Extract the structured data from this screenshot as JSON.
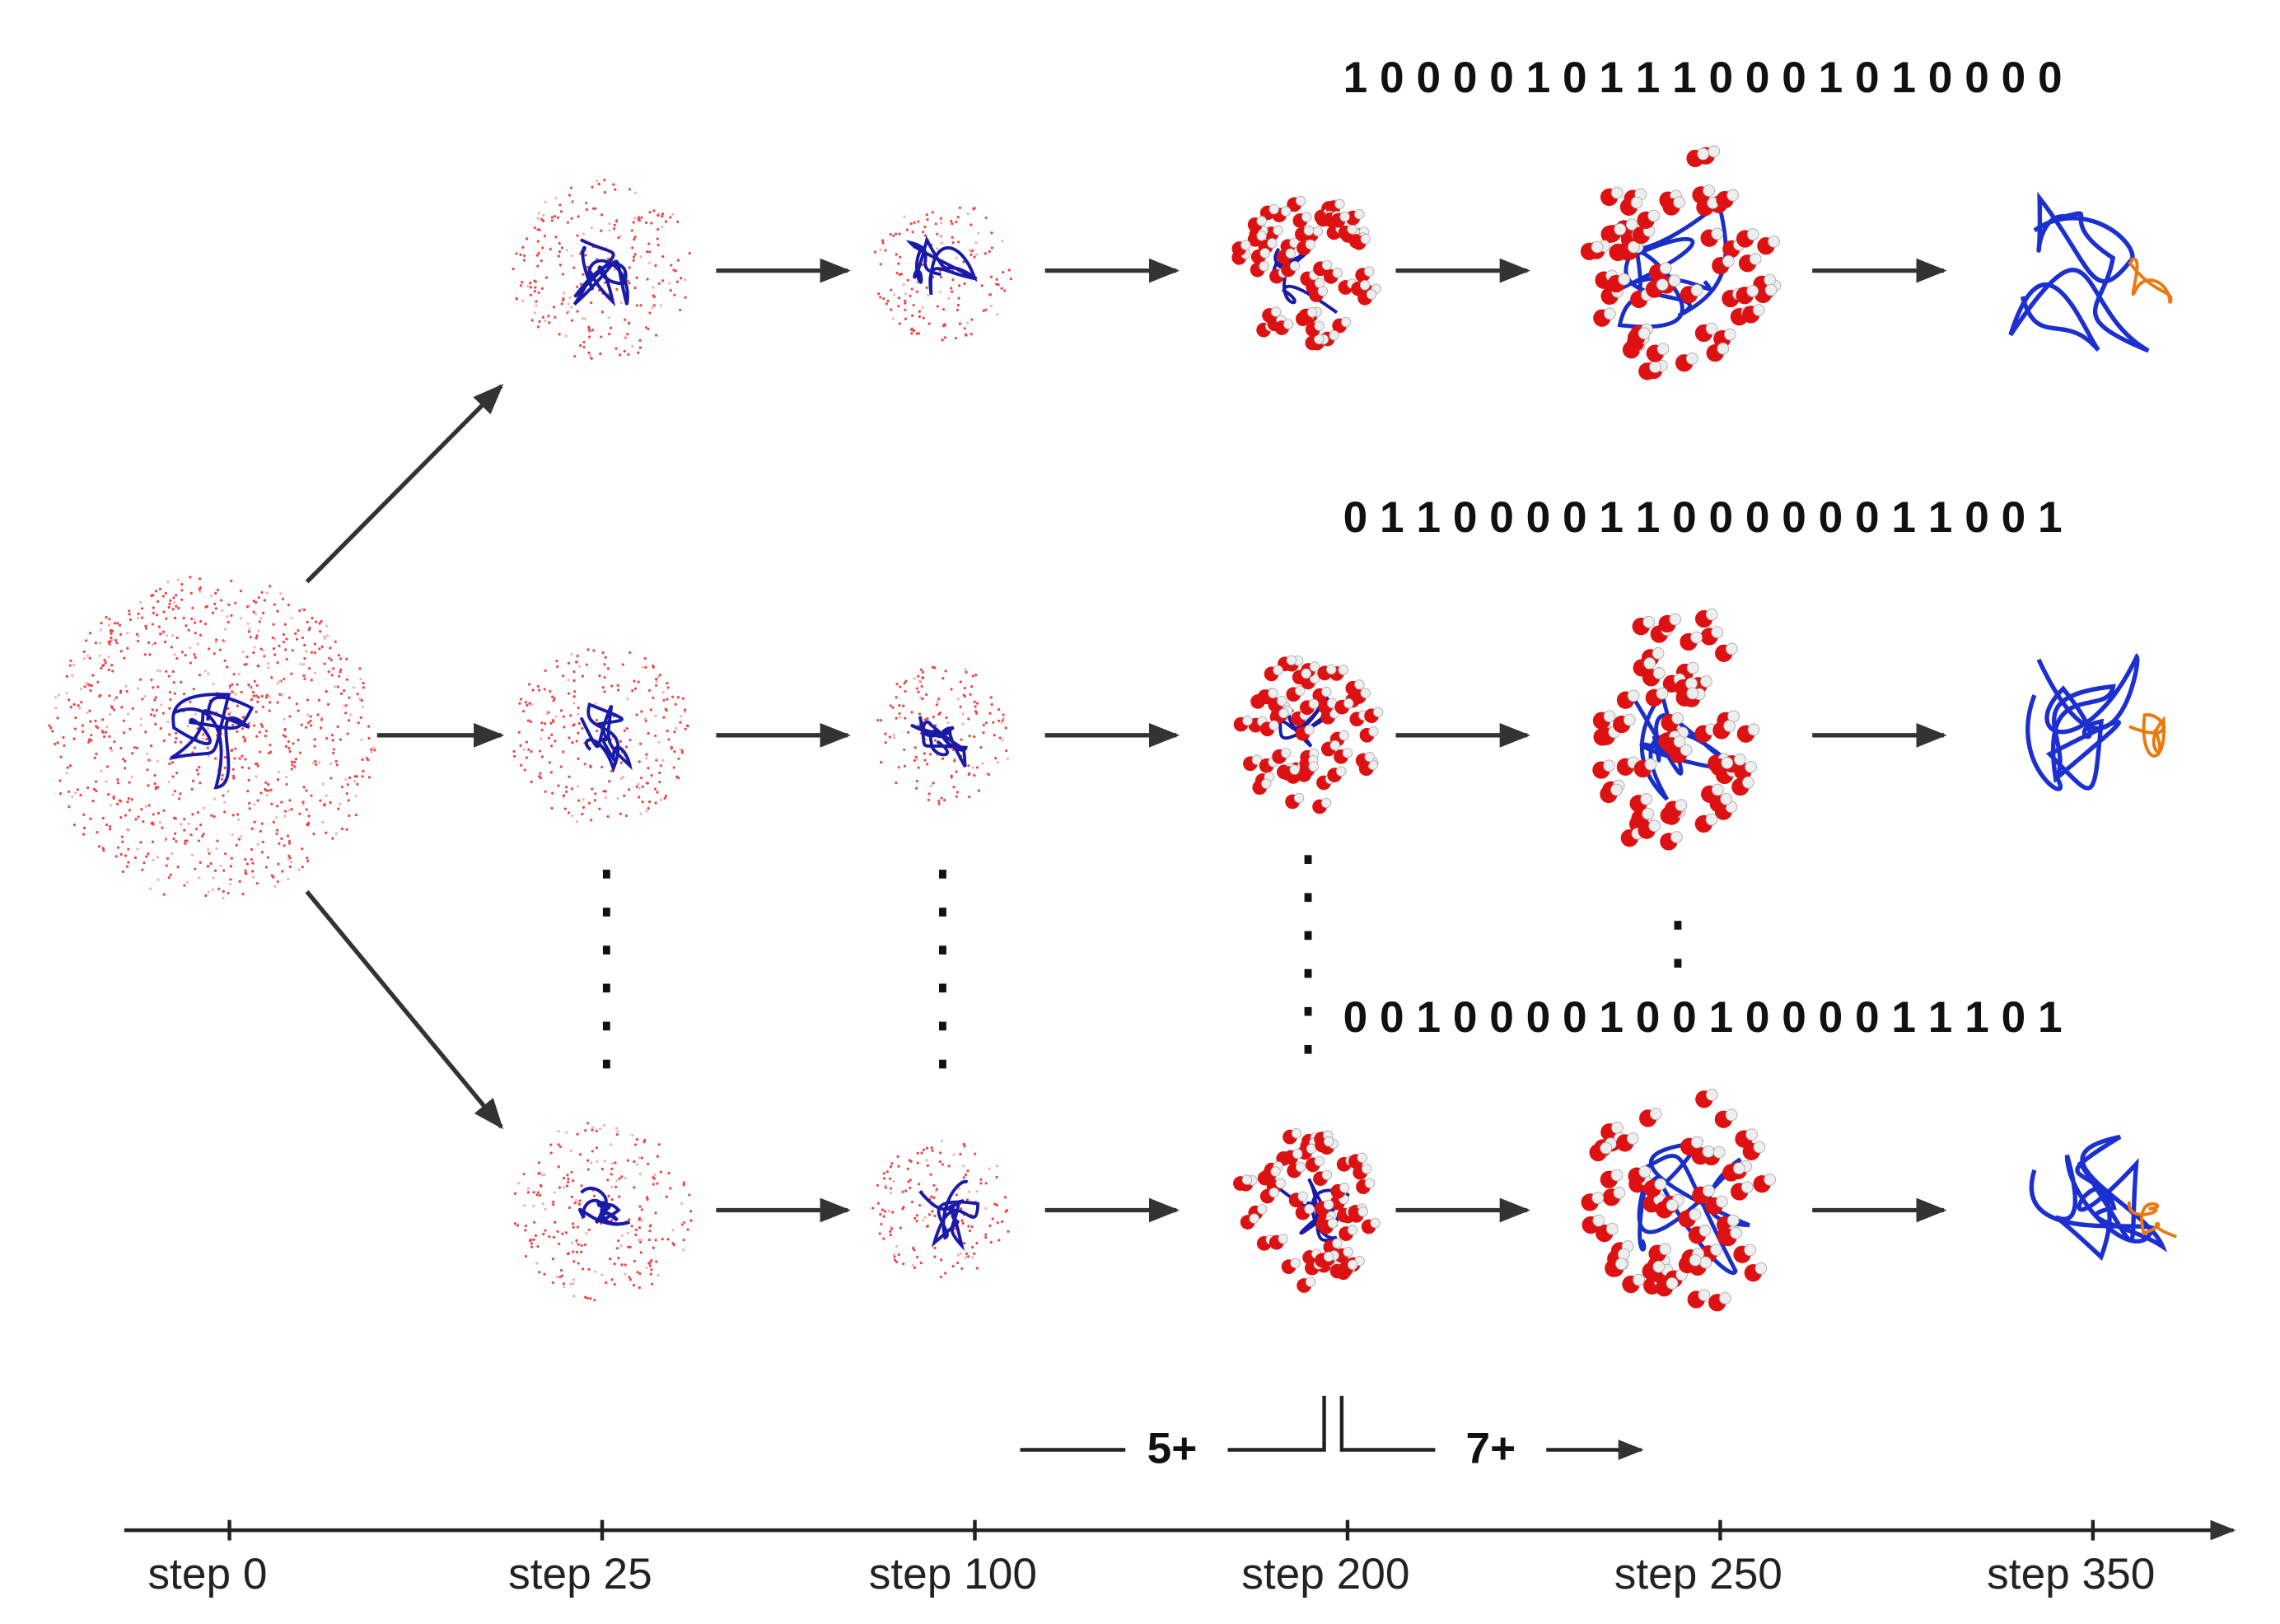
{
  "sequences": [
    "1 0 0 0 0 1 0 1 1 1 0 0 0 1 0 1 0 0 0 0",
    "0 1 1 0 0 0 0 1 1 0 0 0 0 0 0 1 1 0 0 1",
    "0 0 1 0 0 0 0 1 0 0 1 0 0 0 0 1 1 1 0 1"
  ],
  "charges": [
    "5+",
    "7+"
  ],
  "axis": {
    "labels": [
      "step 0",
      "step 25",
      "step 100",
      "step 200",
      "step 250",
      "step 350"
    ]
  }
}
